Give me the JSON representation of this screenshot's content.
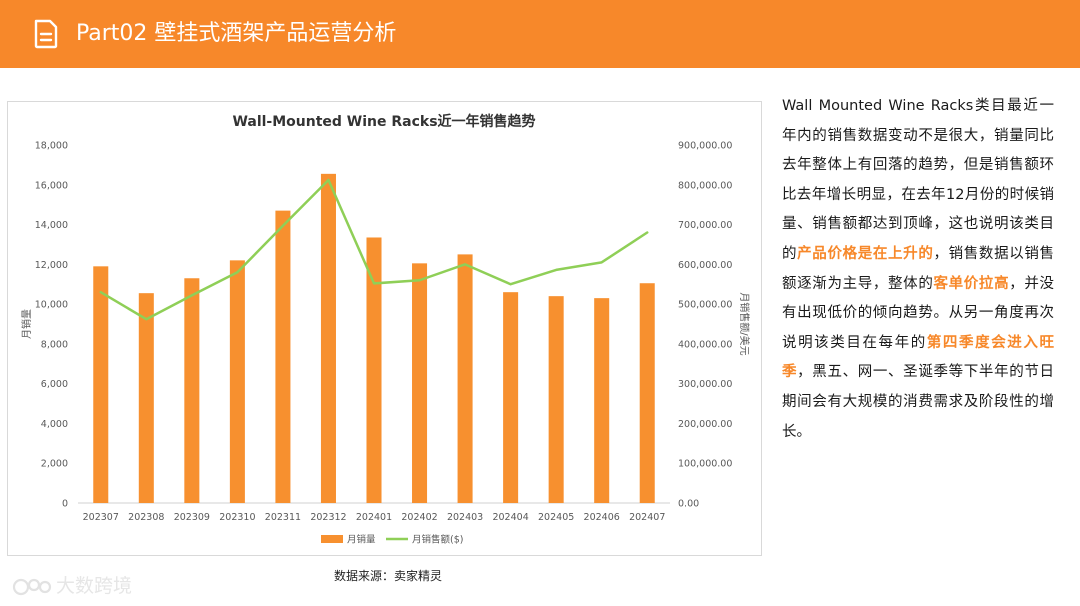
{
  "header": {
    "title": "Part02 壁挂式酒架产品运营分析",
    "icon": "document-icon",
    "color": "#f7882a"
  },
  "chart_data": {
    "type": "bar+line",
    "title": "Wall-Mounted Wine Racks近一年销售趋势",
    "categories": [
      "202307",
      "202308",
      "202309",
      "202310",
      "202311",
      "202312",
      "202401",
      "202402",
      "202403",
      "202404",
      "202405",
      "202406",
      "202407"
    ],
    "series": [
      {
        "name": "月销量",
        "type": "bar",
        "axis": "left",
        "color": "#f7902f",
        "values": [
          11900,
          10550,
          11300,
          12200,
          14700,
          16550,
          13350,
          12050,
          12500,
          10600,
          10400,
          10300,
          11050
        ]
      },
      {
        "name": "月销售额($)",
        "type": "line",
        "axis": "right",
        "color": "#8fcf57",
        "values": [
          530000,
          462000,
          522000,
          580000,
          697000,
          812000,
          552000,
          560000,
          600000,
          550000,
          586000,
          605000,
          680000
        ]
      }
    ],
    "ylabel_left": "月销量",
    "ylabel_right": "月销售额/美元",
    "ylim_left": [
      0,
      18000
    ],
    "ylim_right": [
      0,
      900000
    ],
    "yticks_left": [
      "0",
      "2,000",
      "4,000",
      "6,000",
      "8,000",
      "10,000",
      "12,000",
      "14,000",
      "16,000",
      "18,000"
    ],
    "yticks_right": [
      "0.00",
      "100,000.00",
      "200,000.00",
      "300,000.00",
      "400,000.00",
      "500,000.00",
      "600,000.00",
      "700,000.00",
      "800,000.00",
      "900,000.00"
    ],
    "legend_position": "bottom",
    "grid": false
  },
  "source": "数据来源：卖家精灵",
  "analysis": {
    "p1": "Wall Mounted Wine Racks类目最近一年内的销售数据变动不是很大，销量同比去年整体上有回落的趋势，但是销售额环比去年增长明显，在去年12月份的时候销量、销售额都达到顶峰，这也说明该类目的",
    "h1": "产品价格是在上升的",
    "p2": "，销售数据以销售额逐渐为主导，整体的",
    "h2": "客单价拉高",
    "p3": "，并没有出现低价的倾向趋势。从另一角度再次说明该类目在每年的",
    "h3": "第四季度会进入旺季",
    "p4": "，黑五、网一、圣诞季等下半年的节日期间会有大规模的消费需求及阶段性的增长。"
  },
  "watermark": {
    "text": "大数跨境",
    "icon": "brand-logo-icon"
  }
}
